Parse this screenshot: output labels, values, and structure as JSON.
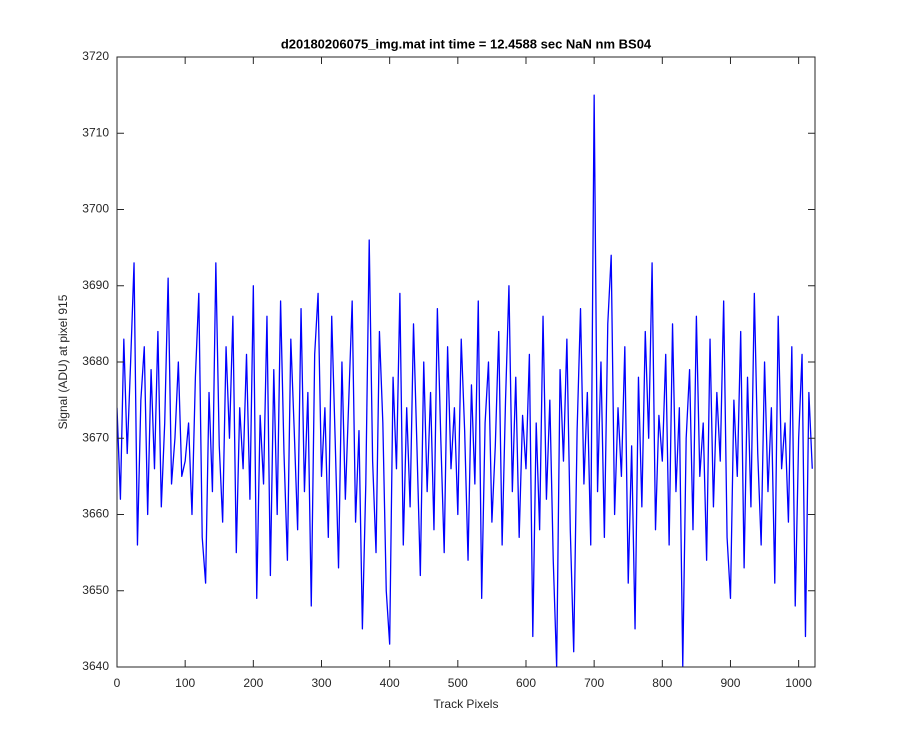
{
  "chart_data": {
    "type": "line",
    "title": "d20180206075_img.mat int time = 12.4588 sec  NaN nm BS04",
    "x_label": "Track Pixels",
    "y_label": "Signal (ADU) at pixel 915",
    "xlim": [
      0,
      1024
    ],
    "ylim": [
      3640,
      3720
    ],
    "xticks": [
      0,
      100,
      200,
      300,
      400,
      500,
      600,
      700,
      800,
      900,
      1000
    ],
    "yticks": [
      3640,
      3650,
      3660,
      3670,
      3680,
      3690,
      3700,
      3710,
      3720
    ],
    "grid": false,
    "x": [
      0,
      5,
      10,
      15,
      20,
      25,
      30,
      35,
      40,
      45,
      50,
      55,
      60,
      65,
      70,
      75,
      80,
      85,
      90,
      95,
      100,
      105,
      110,
      115,
      120,
      125,
      130,
      135,
      140,
      145,
      150,
      155,
      160,
      165,
      170,
      175,
      180,
      185,
      190,
      195,
      200,
      205,
      210,
      215,
      220,
      225,
      230,
      235,
      240,
      245,
      250,
      255,
      260,
      265,
      270,
      275,
      280,
      285,
      290,
      295,
      300,
      305,
      310,
      315,
      320,
      325,
      330,
      335,
      340,
      345,
      350,
      355,
      360,
      365,
      370,
      375,
      380,
      385,
      390,
      395,
      400,
      405,
      410,
      415,
      420,
      425,
      430,
      435,
      440,
      445,
      450,
      455,
      460,
      465,
      470,
      475,
      480,
      485,
      490,
      495,
      500,
      505,
      510,
      515,
      520,
      525,
      530,
      535,
      540,
      545,
      550,
      555,
      560,
      565,
      570,
      575,
      580,
      585,
      590,
      595,
      600,
      605,
      610,
      615,
      620,
      625,
      630,
      635,
      640,
      645,
      650,
      655,
      660,
      665,
      670,
      675,
      680,
      685,
      690,
      695,
      700,
      705,
      710,
      715,
      720,
      725,
      730,
      735,
      740,
      745,
      750,
      755,
      760,
      765,
      770,
      775,
      780,
      785,
      790,
      795,
      800,
      805,
      810,
      815,
      820,
      825,
      830,
      835,
      840,
      845,
      850,
      855,
      860,
      865,
      870,
      875,
      880,
      885,
      890,
      895,
      900,
      905,
      910,
      915,
      920,
      925,
      930,
      935,
      940,
      945,
      950,
      955,
      960,
      965,
      970,
      975,
      980,
      985,
      990,
      995,
      1000,
      1005,
      1010,
      1015,
      1020
    ],
    "series": [
      {
        "color": "#0000ff",
        "values": [
          3674,
          3662,
          3683,
          3668,
          3680,
          3693,
          3656,
          3675,
          3682,
          3660,
          3679,
          3666,
          3684,
          3661,
          3672,
          3691,
          3664,
          3670,
          3680,
          3665,
          3667,
          3672,
          3660,
          3678,
          3689,
          3657,
          3651,
          3676,
          3663,
          3693,
          3669,
          3659,
          3682,
          3670,
          3686,
          3655,
          3674,
          3666,
          3681,
          3662,
          3690,
          3649,
          3673,
          3664,
          3686,
          3652,
          3679,
          3660,
          3688,
          3668,
          3654,
          3683,
          3671,
          3658,
          3687,
          3663,
          3676,
          3648,
          3681,
          3689,
          3665,
          3674,
          3657,
          3686,
          3670,
          3653,
          3680,
          3662,
          3675,
          3688,
          3659,
          3671,
          3645,
          3664,
          3696,
          3667,
          3655,
          3684,
          3672,
          3650,
          3643,
          3678,
          3666,
          3689,
          3656,
          3674,
          3661,
          3685,
          3669,
          3652,
          3680,
          3663,
          3676,
          3658,
          3687,
          3670,
          3655,
          3682,
          3666,
          3674,
          3660,
          3683,
          3671,
          3654,
          3677,
          3664,
          3688,
          3649,
          3672,
          3680,
          3659,
          3669,
          3684,
          3656,
          3675,
          3690,
          3663,
          3678,
          3657,
          3673,
          3666,
          3681,
          3644,
          3672,
          3658,
          3686,
          3662,
          3675,
          3654,
          3640,
          3679,
          3667,
          3683,
          3658,
          3642,
          3671,
          3687,
          3664,
          3676,
          3656,
          3715,
          3663,
          3680,
          3657,
          3685,
          3694,
          3660,
          3674,
          3665,
          3682,
          3651,
          3669,
          3645,
          3678,
          3661,
          3684,
          3670,
          3693,
          3658,
          3673,
          3667,
          3681,
          3656,
          3685,
          3663,
          3674,
          3640,
          3670,
          3679,
          3658,
          3686,
          3665,
          3672,
          3654,
          3683,
          3661,
          3676,
          3667,
          3688,
          3657,
          3649,
          3675,
          3665,
          3684,
          3653,
          3678,
          3661,
          3689,
          3668,
          3656,
          3680,
          3663,
          3674,
          3651,
          3686,
          3666,
          3672,
          3659,
          3682,
          3648,
          3670,
          3681,
          3644,
          3676,
          3666
        ]
      }
    ]
  }
}
